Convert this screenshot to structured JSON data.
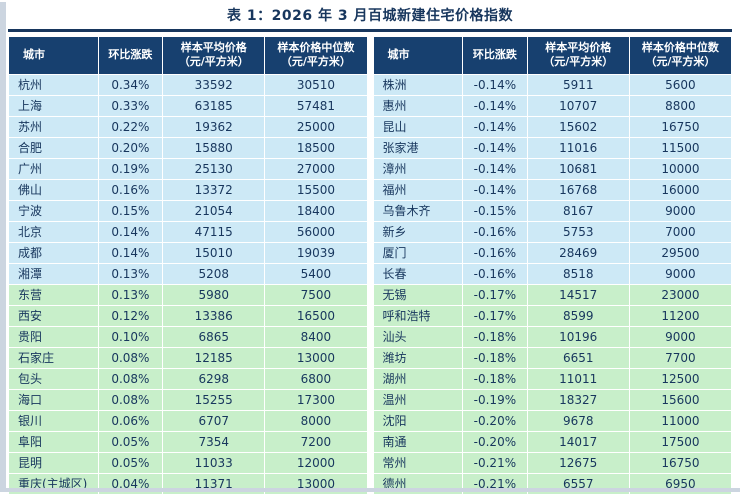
{
  "title": "表 1：2026 年 3 月百城新建住宅价格指数",
  "colors": {
    "header_bg": "#17406f",
    "header_text": "#ffffff",
    "row_blue": "#cde9f6",
    "row_green": "#c8efca",
    "text": "#17365d",
    "rule": "#17365d"
  },
  "columns": [
    {
      "key": "city",
      "label": "城市",
      "sub": ""
    },
    {
      "key": "change",
      "label": "环比涨跌",
      "sub": ""
    },
    {
      "key": "avg",
      "label": "样本平均价格",
      "sub": "（元/平方米）"
    },
    {
      "key": "median",
      "label": "样本价格中位数",
      "sub": "（元/平方米）"
    }
  ],
  "left_rows": [
    {
      "city": "杭州",
      "change": "0.34%",
      "avg": "33592",
      "median": "30510",
      "band": "blue"
    },
    {
      "city": "上海",
      "change": "0.33%",
      "avg": "63185",
      "median": "57481",
      "band": "blue"
    },
    {
      "city": "苏州",
      "change": "0.22%",
      "avg": "19362",
      "median": "25000",
      "band": "blue"
    },
    {
      "city": "合肥",
      "change": "0.20%",
      "avg": "15880",
      "median": "18500",
      "band": "blue"
    },
    {
      "city": "广州",
      "change": "0.19%",
      "avg": "25130",
      "median": "27000",
      "band": "blue"
    },
    {
      "city": "佛山",
      "change": "0.16%",
      "avg": "13372",
      "median": "15500",
      "band": "blue"
    },
    {
      "city": "宁波",
      "change": "0.15%",
      "avg": "21054",
      "median": "18400",
      "band": "blue"
    },
    {
      "city": "北京",
      "change": "0.14%",
      "avg": "47115",
      "median": "56000",
      "band": "blue"
    },
    {
      "city": "成都",
      "change": "0.14%",
      "avg": "15010",
      "median": "19039",
      "band": "blue"
    },
    {
      "city": "湘潭",
      "change": "0.13%",
      "avg": "5208",
      "median": "5400",
      "band": "blue"
    },
    {
      "city": "东营",
      "change": "0.13%",
      "avg": "5980",
      "median": "7500",
      "band": "green"
    },
    {
      "city": "西安",
      "change": "0.12%",
      "avg": "13386",
      "median": "16500",
      "band": "green"
    },
    {
      "city": "贵阳",
      "change": "0.10%",
      "avg": "6865",
      "median": "8400",
      "band": "green"
    },
    {
      "city": "石家庄",
      "change": "0.08%",
      "avg": "12185",
      "median": "13000",
      "band": "green"
    },
    {
      "city": "包头",
      "change": "0.08%",
      "avg": "6298",
      "median": "6800",
      "band": "green"
    },
    {
      "city": "海口",
      "change": "0.08%",
      "avg": "15255",
      "median": "17300",
      "band": "green"
    },
    {
      "city": "银川",
      "change": "0.06%",
      "avg": "6707",
      "median": "8000",
      "band": "green"
    },
    {
      "city": "阜阳",
      "change": "0.05%",
      "avg": "7354",
      "median": "7200",
      "band": "green"
    },
    {
      "city": "昆明",
      "change": "0.05%",
      "avg": "11033",
      "median": "12000",
      "band": "green"
    },
    {
      "city": "重庆(主城区)",
      "change": "0.04%",
      "avg": "11371",
      "median": "13000",
      "band": "green"
    }
  ],
  "right_rows": [
    {
      "city": "株洲",
      "change": "-0.14%",
      "avg": "5911",
      "median": "5600",
      "band": "blue"
    },
    {
      "city": "惠州",
      "change": "-0.14%",
      "avg": "10707",
      "median": "8800",
      "band": "blue"
    },
    {
      "city": "昆山",
      "change": "-0.14%",
      "avg": "15602",
      "median": "16750",
      "band": "blue"
    },
    {
      "city": "张家港",
      "change": "-0.14%",
      "avg": "11016",
      "median": "11500",
      "band": "blue"
    },
    {
      "city": "漳州",
      "change": "-0.14%",
      "avg": "10681",
      "median": "10000",
      "band": "blue"
    },
    {
      "city": "福州",
      "change": "-0.14%",
      "avg": "16768",
      "median": "16000",
      "band": "blue"
    },
    {
      "city": "乌鲁木齐",
      "change": "-0.15%",
      "avg": "8167",
      "median": "9000",
      "band": "blue"
    },
    {
      "city": "新乡",
      "change": "-0.16%",
      "avg": "5753",
      "median": "7000",
      "band": "blue"
    },
    {
      "city": "厦门",
      "change": "-0.16%",
      "avg": "28469",
      "median": "29500",
      "band": "blue"
    },
    {
      "city": "长春",
      "change": "-0.16%",
      "avg": "8518",
      "median": "9000",
      "band": "blue"
    },
    {
      "city": "无锡",
      "change": "-0.17%",
      "avg": "14517",
      "median": "23000",
      "band": "green"
    },
    {
      "city": "呼和浩特",
      "change": "-0.17%",
      "avg": "8599",
      "median": "11200",
      "band": "green"
    },
    {
      "city": "汕头",
      "change": "-0.18%",
      "avg": "10196",
      "median": "9000",
      "band": "green"
    },
    {
      "city": "潍坊",
      "change": "-0.18%",
      "avg": "6651",
      "median": "7700",
      "band": "green"
    },
    {
      "city": "湖州",
      "change": "-0.18%",
      "avg": "11011",
      "median": "12500",
      "band": "green"
    },
    {
      "city": "温州",
      "change": "-0.19%",
      "avg": "18327",
      "median": "15600",
      "band": "green"
    },
    {
      "city": "沈阳",
      "change": "-0.20%",
      "avg": "9678",
      "median": "11000",
      "band": "green"
    },
    {
      "city": "南通",
      "change": "-0.20%",
      "avg": "14017",
      "median": "17500",
      "band": "green"
    },
    {
      "city": "常州",
      "change": "-0.21%",
      "avg": "12675",
      "median": "16750",
      "band": "green"
    },
    {
      "city": "德州",
      "change": "-0.21%",
      "avg": "6557",
      "median": "6950",
      "band": "green"
    }
  ]
}
